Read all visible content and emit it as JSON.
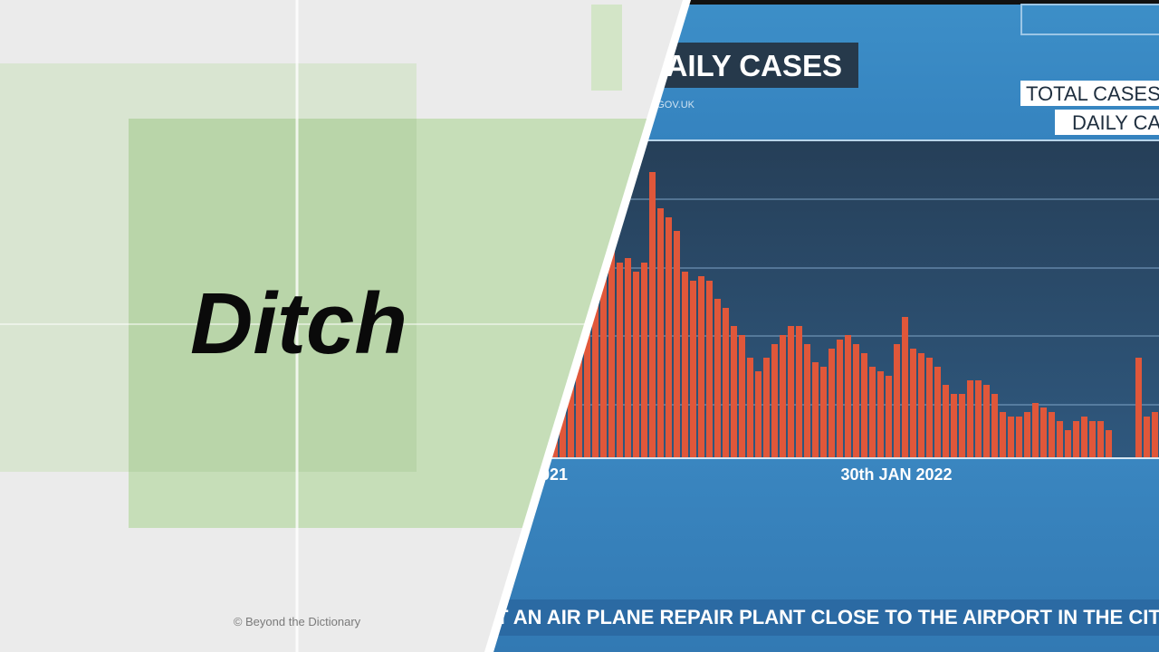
{
  "slide": {
    "word": "Ditch",
    "credit": "© Beyond the Dictionary"
  },
  "news_graphic": {
    "title": "DAILY CASES",
    "source": "A.GOV.UK",
    "legend": [
      "TOTAL CASES",
      "DAILY CA"
    ],
    "x_labels": [
      "021",
      "30th JAN 2022"
    ],
    "ticker": "T AN AIR PLANE REPAIR PLANT CLOSE TO THE AIRPORT IN THE CITY WIT"
  }
}
